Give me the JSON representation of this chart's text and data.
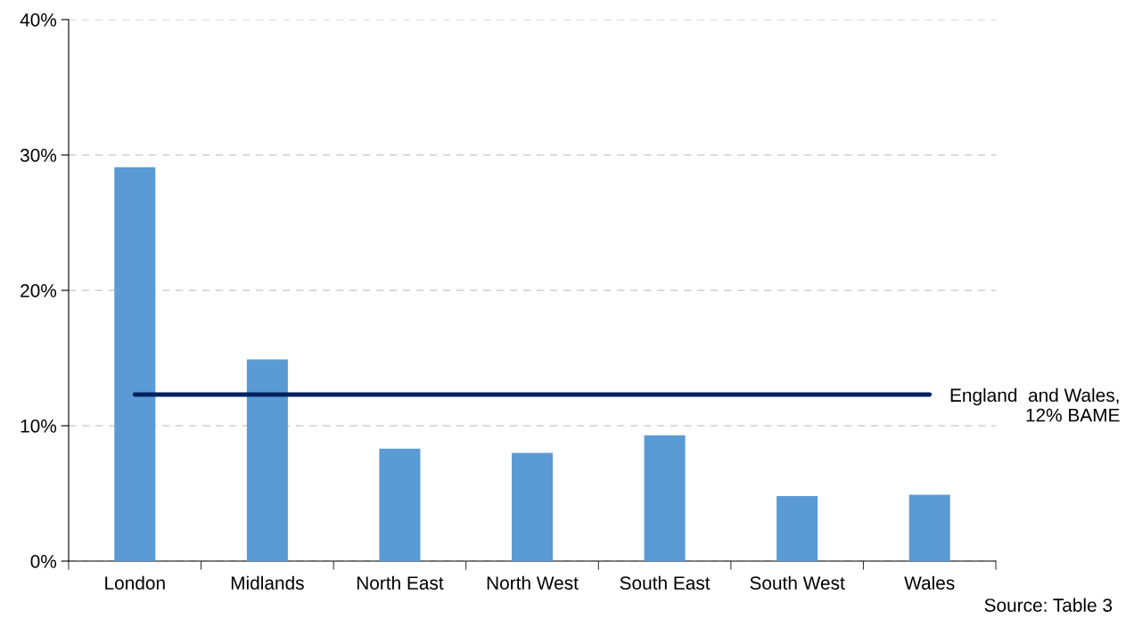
{
  "chart_data": {
    "type": "bar",
    "categories": [
      "London",
      "Midlands",
      "North East",
      "North West",
      "South East",
      "South West",
      "Wales"
    ],
    "values": [
      29.1,
      14.9,
      8.3,
      8.0,
      9.3,
      4.8,
      4.9
    ],
    "color": "#5b9bd5",
    "ylim": [
      0,
      40
    ],
    "yticks": [
      {
        "value": 0,
        "label": "0%"
      },
      {
        "value": 10,
        "label": "10%"
      },
      {
        "value": 20,
        "label": "20%"
      },
      {
        "value": 30,
        "label": "30%"
      },
      {
        "value": 40,
        "label": "40%"
      }
    ],
    "grid": "y",
    "ref_lines": [
      {
        "axis": "y",
        "value": 12.3,
        "label": "England  and Wales,\n12% BAME",
        "color": "#002060",
        "line_style": "solid"
      }
    ],
    "annotations": [
      "Source: Table 3"
    ]
  }
}
